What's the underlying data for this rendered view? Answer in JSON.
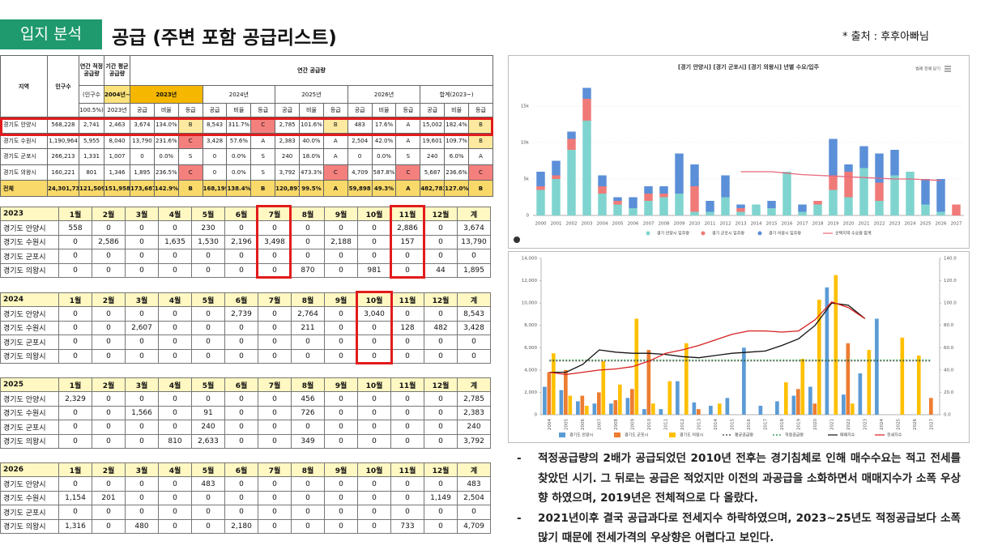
{
  "header": {
    "badge": "입지 분석",
    "title": "공급 (주변 포함 공급리스트)",
    "source": "* 출처 : 후후아빠님"
  },
  "summary_table": {
    "columns": [
      "지역",
      "인구수",
      "연간 적정 공급량",
      "기간 평균 공급량"
    ],
    "group_title": "연간 공급량",
    "basis": [
      "(인구수",
      "100.5%)"
    ],
    "period": [
      "2004년~",
      "2023년"
    ],
    "years": [
      "2023년",
      "2024년",
      "2025년",
      "2026년",
      "합계(2023~)"
    ],
    "subcolumns": [
      "공급",
      "비율",
      "등급"
    ],
    "rows": [
      [
        "경기도 안양시",
        "568,228",
        "2,741",
        "2,463",
        "3,674",
        "134.0%",
        "B",
        "8,543",
        "311.7%",
        "C",
        "2,785",
        "101.6%",
        "B",
        "483",
        "17.6%",
        "A",
        "15,002",
        "182.4%",
        "B"
      ],
      [
        "경기도 수원시",
        "1,190,964",
        "5,955",
        "8,040",
        "13,790",
        "231.6%",
        "C",
        "3,428",
        "57.6%",
        "A",
        "2,383",
        "40.0%",
        "A",
        "2,504",
        "42.0%",
        "A",
        "19,601",
        "109.7%",
        "B"
      ],
      [
        "경기도 군포시",
        "266,213",
        "1,331",
        "1,007",
        "0",
        "0.0%",
        "S",
        "0",
        "0.0%",
        "S",
        "240",
        "18.0%",
        "A",
        "0",
        "0.0%",
        "S",
        "240",
        "6.0%",
        "A"
      ],
      [
        "경기도 의왕시",
        "160,221",
        "801",
        "1,346",
        "1,895",
        "236.5%",
        "C",
        "0",
        "0.0%",
        "S",
        "3,792",
        "473.3%",
        "C",
        "4,709",
        "587.8%",
        "C",
        "5,687",
        "236.6%",
        "C"
      ],
      [
        "전체",
        "24,301,734",
        "121,509",
        "151,958",
        "173,687",
        "142.9%",
        "B",
        "168,199",
        "138.4%",
        "B",
        "120,897",
        "99.5%",
        "A",
        "59,898",
        "49.3%",
        "A",
        "482,783",
        "127.0%",
        "B"
      ]
    ]
  },
  "monthly_tables": [
    {
      "year": "2023",
      "columns": [
        "1월",
        "2월",
        "3월",
        "4월",
        "5월",
        "6월",
        "7월",
        "8월",
        "9월",
        "10월",
        "11월",
        "12월",
        "계"
      ],
      "rows": [
        [
          "경기도 안양시",
          "558",
          "0",
          "0",
          "0",
          "230",
          "0",
          "0",
          "0",
          "0",
          "0",
          "2,886",
          "0",
          "3,674"
        ],
        [
          "경기도 수원시",
          "0",
          "2,586",
          "0",
          "1,635",
          "1,530",
          "2,196",
          "3,498",
          "0",
          "2,188",
          "0",
          "157",
          "0",
          "13,790"
        ],
        [
          "경기도 군포시",
          "0",
          "0",
          "0",
          "0",
          "0",
          "0",
          "0",
          "0",
          "0",
          "0",
          "0",
          "0",
          "0"
        ],
        [
          "경기도 의왕시",
          "0",
          "0",
          "0",
          "0",
          "0",
          "0",
          "0",
          "870",
          "0",
          "981",
          "0",
          "44",
          "1,895"
        ]
      ]
    },
    {
      "year": "2024",
      "columns": [
        "1월",
        "2월",
        "3월",
        "4월",
        "5월",
        "6월",
        "7월",
        "8월",
        "9월",
        "10월",
        "11월",
        "12월",
        "계"
      ],
      "rows": [
        [
          "경기도 안양시",
          "0",
          "0",
          "0",
          "0",
          "0",
          "2,739",
          "0",
          "2,764",
          "0",
          "3,040",
          "0",
          "0",
          "8,543"
        ],
        [
          "경기도 수원시",
          "0",
          "0",
          "2,607",
          "0",
          "0",
          "0",
          "0",
          "211",
          "0",
          "0",
          "128",
          "482",
          "3,428"
        ],
        [
          "경기도 군포시",
          "0",
          "0",
          "0",
          "0",
          "0",
          "0",
          "0",
          "0",
          "0",
          "0",
          "0",
          "0",
          "0"
        ],
        [
          "경기도 의왕시",
          "0",
          "0",
          "0",
          "0",
          "0",
          "0",
          "0",
          "0",
          "0",
          "0",
          "0",
          "0",
          "0"
        ]
      ]
    },
    {
      "year": "2025",
      "columns": [
        "1월",
        "2월",
        "3월",
        "4월",
        "5월",
        "6월",
        "7월",
        "8월",
        "9월",
        "10월",
        "11월",
        "12월",
        "계"
      ],
      "rows": [
        [
          "경기도 안양시",
          "2,329",
          "0",
          "0",
          "0",
          "0",
          "0",
          "0",
          "456",
          "0",
          "0",
          "0",
          "0",
          "2,785"
        ],
        [
          "경기도 수원시",
          "0",
          "0",
          "1,566",
          "0",
          "91",
          "0",
          "0",
          "726",
          "0",
          "0",
          "0",
          "0",
          "2,383"
        ],
        [
          "경기도 군포시",
          "0",
          "0",
          "0",
          "0",
          "240",
          "0",
          "0",
          "0",
          "0",
          "0",
          "0",
          "0",
          "240"
        ],
        [
          "경기도 의왕시",
          "0",
          "0",
          "0",
          "810",
          "2,633",
          "0",
          "0",
          "349",
          "0",
          "0",
          "0",
          "0",
          "3,792"
        ]
      ]
    },
    {
      "year": "2026",
      "columns": [
        "1월",
        "2월",
        "3월",
        "4월",
        "5월",
        "6월",
        "7월",
        "8월",
        "9월",
        "10월",
        "11월",
        "12월",
        "계"
      ],
      "rows": [
        [
          "경기도 안양시",
          "0",
          "0",
          "0",
          "0",
          "483",
          "0",
          "0",
          "0",
          "0",
          "0",
          "0",
          "0",
          "483"
        ],
        [
          "경기도 수원시",
          "1,154",
          "201",
          "0",
          "0",
          "0",
          "0",
          "0",
          "0",
          "0",
          "0",
          "0",
          "1,149",
          "2,504"
        ],
        [
          "경기도 군포시",
          "0",
          "0",
          "0",
          "0",
          "0",
          "0",
          "0",
          "0",
          "0",
          "0",
          "0",
          "0",
          "0"
        ],
        [
          "경기도 의왕시",
          "1,316",
          "0",
          "480",
          "0",
          "0",
          "2,180",
          "0",
          "0",
          "0",
          "0",
          "733",
          "0",
          "4,709"
        ]
      ]
    }
  ],
  "chart_data": [
    {
      "type": "bar",
      "stacked": true,
      "title": "[경기 안양시] [경기 군포시] [경기 의왕시] 년별 수요/입주",
      "control": "범례 전체 닫기",
      "x": [
        2000,
        2001,
        2002,
        2003,
        2004,
        2005,
        2006,
        2007,
        2008,
        2009,
        2010,
        2011,
        2012,
        2013,
        2014,
        2015,
        2016,
        2017,
        2018,
        2019,
        2020,
        2021,
        2022,
        2023,
        2024,
        2025,
        2026,
        2027
      ],
      "ylim": [
        0,
        18000
      ],
      "yticks": [
        0,
        {
          "value": 5000,
          "label": "5k"
        },
        {
          "value": 10000,
          "label": "10k"
        },
        {
          "value": 15000,
          "label": "15k"
        }
      ],
      "grid": true,
      "series": [
        {
          "name": "경기 안양시 입주량",
          "color": "#7fd4cf",
          "values": [
            3500,
            5000,
            9000,
            13000,
            3000,
            1500,
            1000,
            2000,
            2500,
            3000,
            500,
            500,
            2500,
            500,
            1500,
            1000,
            6000,
            500,
            1500,
            3500,
            2500,
            6500,
            2000,
            5500,
            6000,
            1500,
            500,
            0
          ]
        },
        {
          "name": "경기 군포시 입주량",
          "color": "#f07a78",
          "values": [
            500,
            500,
            1500,
            3000,
            1000,
            500,
            0,
            1000,
            500,
            0,
            3500,
            0,
            0,
            500,
            0,
            0,
            0,
            0,
            500,
            2000,
            3500,
            0,
            2500,
            0,
            0,
            0,
            0,
            1500
          ]
        },
        {
          "name": "경기 의왕시 입주량",
          "color": "#5b8fd8",
          "values": [
            2000,
            2000,
            1000,
            1500,
            1500,
            500,
            1500,
            1000,
            1000,
            5500,
            3000,
            1500,
            3000,
            500,
            0,
            1000,
            0,
            1000,
            0,
            5000,
            1000,
            3000,
            4000,
            3500,
            0,
            3500,
            4500,
            0
          ]
        },
        {
          "name": "선택지역 수요량 합계",
          "color": "#e8677c",
          "mark": "line",
          "values": [
            null,
            null,
            null,
            null,
            null,
            null,
            null,
            null,
            null,
            null,
            null,
            null,
            null,
            6000,
            6000,
            6000,
            5800,
            5600,
            5500,
            5400,
            5300,
            5200,
            5100,
            5000,
            5000,
            4900,
            4800,
            null
          ]
        }
      ]
    },
    {
      "type": "bar",
      "stacked": false,
      "x": [
        2004,
        2005,
        2006,
        2007,
        2008,
        2009,
        2010,
        2011,
        2012,
        2013,
        2014,
        2015,
        2016,
        2017,
        2018,
        2019,
        2020,
        2021,
        2022,
        2023,
        2024,
        2025,
        2026,
        2027
      ],
      "ylim": [
        0,
        14000
      ],
      "yticks": [
        0,
        {
          "value": 2000,
          "label": "2,000"
        },
        {
          "value": 4000,
          "label": "4,000"
        },
        {
          "value": 6000,
          "label": "6,000"
        },
        {
          "value": 8000,
          "label": "8,000"
        },
        {
          "value": 10000,
          "label": "10,000"
        },
        {
          "value": 12000,
          "label": "12,000"
        },
        {
          "value": 14000,
          "label": "14,000"
        }
      ],
      "y2lim": [
        0,
        140
      ],
      "y2ticks": [
        {
          "value": 0,
          "label": "0.0"
        },
        {
          "value": 20,
          "label": "20.0"
        },
        {
          "value": 40,
          "label": "40.0"
        },
        {
          "value": 60,
          "label": "60.0"
        },
        {
          "value": 80,
          "label": "80.0"
        },
        {
          "value": 100,
          "label": "100.0"
        },
        {
          "value": 120,
          "label": "120.0"
        },
        {
          "value": 140,
          "label": "140.0"
        }
      ],
      "grid": false,
      "series": [
        {
          "name": "경기도 안양시",
          "color": "#5b9bd5",
          "values": [
            2500,
            2200,
            1200,
            1000,
            1000,
            1500,
            500,
            500,
            3000,
            1100,
            800,
            1500,
            6000,
            800,
            1200,
            1700,
            2500,
            11400,
            1800,
            3700,
            8600,
            0,
            0,
            0
          ]
        },
        {
          "name": "경기도 군포시",
          "color": "#ed7d31",
          "values": [
            3800,
            4000,
            1700,
            2000,
            1300,
            2300,
            5800,
            0,
            0,
            500,
            0,
            0,
            0,
            0,
            0,
            2300,
            1000,
            0,
            6400,
            0,
            0,
            0,
            0,
            1500
          ]
        },
        {
          "name": "경기도 의왕시",
          "color": "#ffc000",
          "values": [
            5500,
            1700,
            800,
            4800,
            2700,
            8600,
            1000,
            3000,
            6400,
            0,
            1000,
            0,
            0,
            0,
            2900,
            5000,
            10300,
            12500,
            1000,
            5800,
            0,
            6900,
            5300,
            0
          ]
        },
        {
          "name": "평균공급량",
          "color": "#333333",
          "mark": "line",
          "dash": "2,2",
          "values": [
            4800,
            4800,
            4800,
            4800,
            4800,
            4800,
            4800,
            4800,
            4800,
            4800,
            4800,
            4800,
            4800,
            4800,
            4800,
            4800,
            4800,
            4800,
            4800,
            4800,
            4800,
            4800,
            4800,
            4800
          ]
        },
        {
          "name": "적정공급량",
          "color": "#1e8f3a",
          "mark": "line",
          "dash": "2,2",
          "values": [
            4900,
            4900,
            4900,
            4900,
            4900,
            4900,
            4900,
            4900,
            4900,
            4900,
            4900,
            4900,
            4900,
            4900,
            4900,
            4900,
            4900,
            4900,
            4900,
            4900,
            4900,
            4900,
            4900,
            4900
          ]
        },
        {
          "name": "매매지수",
          "color": "#111111",
          "mark": "line",
          "axis": "y2",
          "values": [
            38,
            38,
            45,
            58,
            56,
            55,
            55,
            54,
            52,
            51,
            53,
            55,
            56,
            57,
            62,
            68,
            80,
            100,
            98,
            86,
            null,
            null,
            null,
            null
          ]
        },
        {
          "name": "전세지수",
          "color": "#d81e1e",
          "mark": "line",
          "axis": "y2",
          "values": [
            38,
            36,
            38,
            40,
            41,
            43,
            48,
            55,
            58,
            62,
            67,
            72,
            75,
            75,
            74,
            75,
            85,
            101,
            96,
            86,
            null,
            null,
            null,
            null
          ]
        }
      ]
    }
  ],
  "notes": [
    "적정공급량의 2배가 공급되었던 2010년 전후는 경기침체로 인해 매수수요는 적고 전세를 찾았던 시기. 그 뒤로는 공급은 적었지만 이전의 과공급을 소화하면서 매매지수가 소폭 우상향 하였으며, 2019년은 전체적으로 다 올랐다.",
    "2021년이후 결국 공급과다로 전세지수 하락하였으며, 2023~25년도 적정공급보다 소폭 많기 때문에 전세가격의 우상향은 어렵다고 보인다."
  ]
}
